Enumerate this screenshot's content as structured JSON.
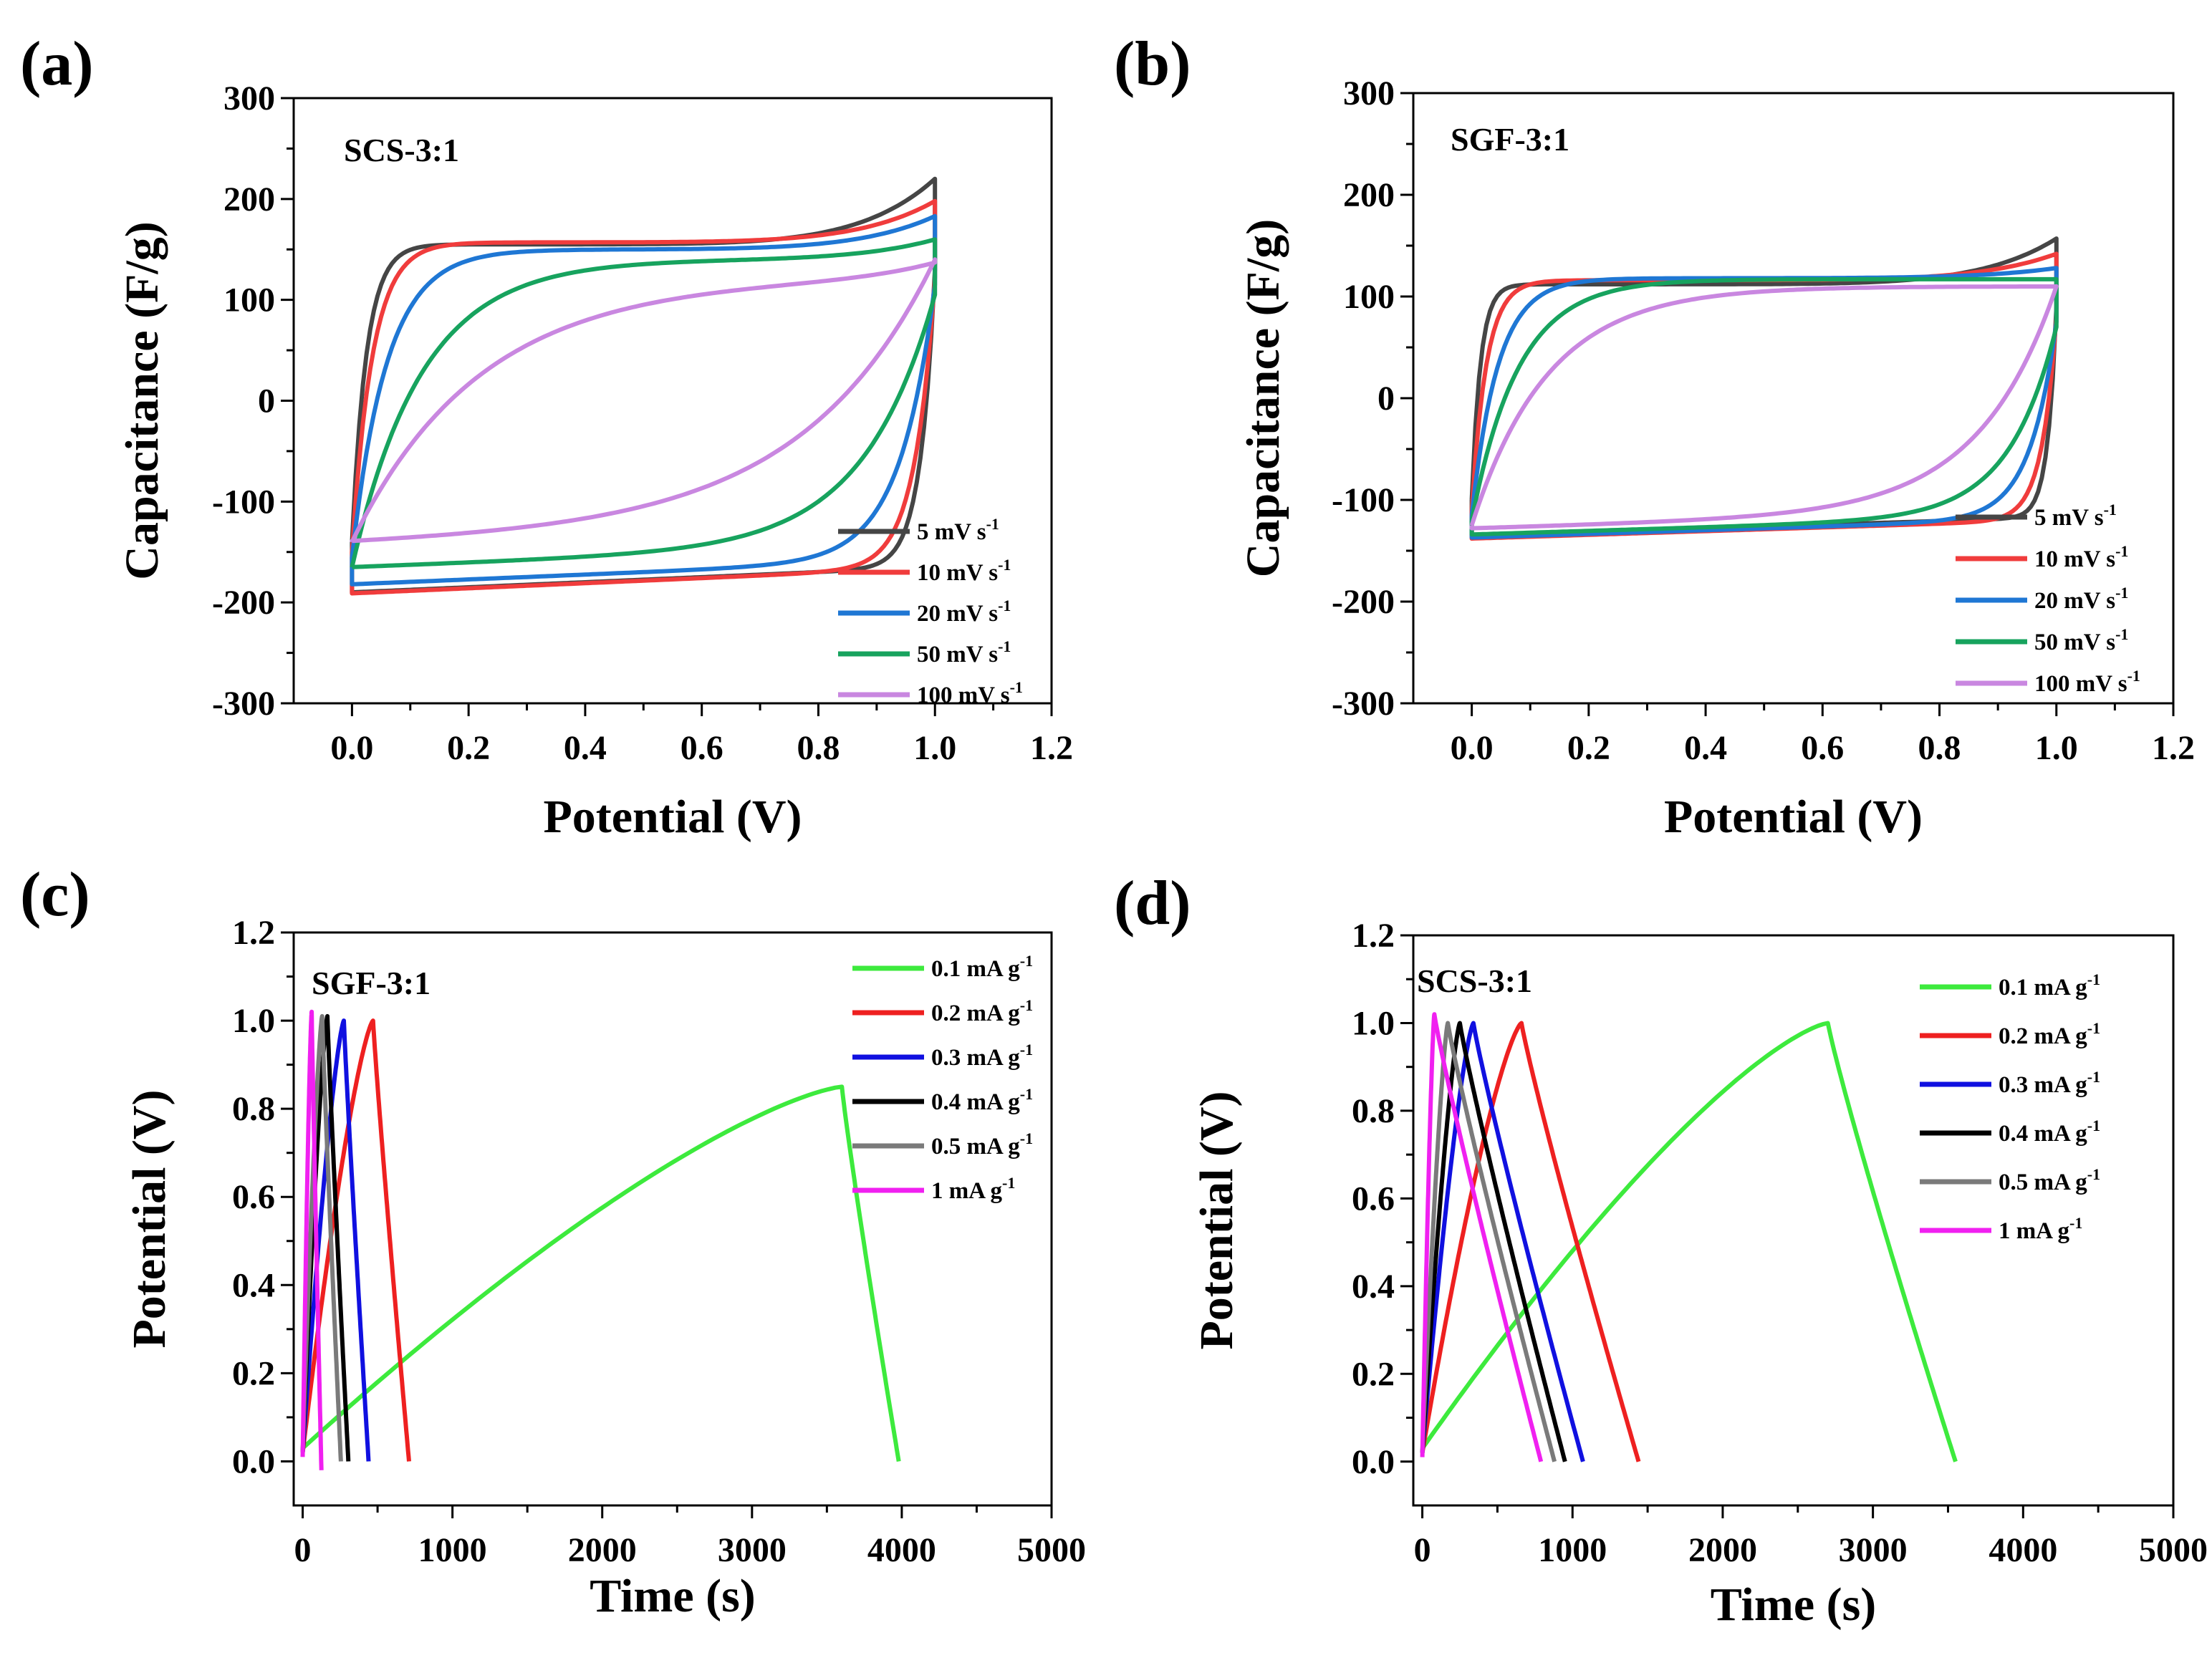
{
  "chart_data": [
    {
      "type": "line",
      "panel": "(a)",
      "inset_label": "SCS-3:1",
      "xlabel": "Potential (V)",
      "ylabel": "Capacitance (F/g)",
      "xlim": [
        -0.1,
        1.2
      ],
      "ylim": [
        -300,
        300
      ],
      "xticks": [
        "0.0",
        "0.2",
        "0.4",
        "0.6",
        "0.8",
        "1.0",
        "1.2"
      ],
      "yticks": [
        "300",
        "200",
        "100",
        "0",
        "-100",
        "-200",
        "-300"
      ],
      "legend_position": "bottom-right",
      "series": [
        {
          "name": "5 mV s",
          "sup": "-1",
          "color": "#454545",
          "upper_start": -140,
          "upper_left": 155,
          "upper_right": 220,
          "lower_right": 130,
          "lower_left": -190,
          "tau": 0.025,
          "v": 10
        },
        {
          "name": "10 mV s",
          "sup": "-1",
          "color": "#f03c3c",
          "upper_start": -150,
          "upper_left": 157,
          "upper_right": 198,
          "lower_right": 122,
          "lower_left": -191,
          "tau": 0.035,
          "v": 10
        },
        {
          "name": "20 mV s",
          "sup": "-1",
          "color": "#1f77d4",
          "upper_start": -155,
          "upper_left": 150,
          "upper_right": 183,
          "lower_right": 115,
          "lower_left": -182,
          "tau": 0.06,
          "v": 10
        },
        {
          "name": "50 mV s",
          "sup": "-1",
          "color": "#17a35e",
          "upper_start": -165,
          "upper_left": 140,
          "upper_right": 160,
          "lower_right": 105,
          "lower_left": -165,
          "tau": 0.12,
          "v": 10
        },
        {
          "name": "100 mV s",
          "sup": "-1",
          "color": "#c987e0",
          "upper_start": -140,
          "upper_left": 122,
          "upper_right": 140,
          "lower_right": 140,
          "lower_left": -142,
          "tau": 0.22,
          "v": 10
        }
      ]
    },
    {
      "type": "line",
      "panel": "(b)",
      "inset_label": "SGF-3:1",
      "xlabel": "Potential (V)",
      "ylabel": "Capacitance (F/g)",
      "xlim": [
        -0.1,
        1.2
      ],
      "ylim": [
        -300,
        300
      ],
      "xticks": [
        "0.0",
        "0.2",
        "0.4",
        "0.6",
        "0.8",
        "1.0",
        "1.2"
      ],
      "yticks": [
        "300",
        "200",
        "100",
        "0",
        "-100",
        "-200",
        "-300"
      ],
      "legend_position": "bottom-right",
      "series": [
        {
          "name": "5 mV s",
          "sup": "-1",
          "color": "#454545",
          "upper_start": -100,
          "upper_left": 112,
          "upper_right": 157,
          "lower_right": 90,
          "lower_left": -135,
          "tau": 0.015,
          "v": 10
        },
        {
          "name": "10 mV s",
          "sup": "-1",
          "color": "#f03c3c",
          "upper_start": -110,
          "upper_left": 116,
          "upper_right": 142,
          "lower_right": 80,
          "lower_left": -138,
          "tau": 0.025,
          "v": 10
        },
        {
          "name": "20 mV s",
          "sup": "-1",
          "color": "#1f77d4",
          "upper_start": -115,
          "upper_left": 118,
          "upper_right": 128,
          "lower_right": 75,
          "lower_left": -137,
          "tau": 0.045,
          "v": 10
        },
        {
          "name": "50 mV s",
          "sup": "-1",
          "color": "#17a35e",
          "upper_start": -120,
          "upper_left": 117,
          "upper_right": 117,
          "lower_right": 70,
          "lower_left": -134,
          "tau": 0.08,
          "v": 10
        },
        {
          "name": "100 mV s",
          "sup": "-1",
          "color": "#c987e0",
          "upper_start": -125,
          "upper_left": 110,
          "upper_right": 110,
          "lower_right": 110,
          "lower_left": -128,
          "tau": 0.13,
          "v": 10
        }
      ]
    },
    {
      "type": "line",
      "panel": "(c)",
      "inset_label": "SGF-3:1",
      "xlabel": "Time (s)",
      "ylabel": "Potential (V)",
      "xlim": [
        -60,
        5000
      ],
      "ylim": [
        -0.1,
        1.2
      ],
      "xticks": [
        "0",
        "1000",
        "2000",
        "3000",
        "4000",
        "5000"
      ],
      "yticks": [
        "1.2",
        "1.0",
        "0.8",
        "0.6",
        "0.4",
        "0.2",
        "0.0"
      ],
      "legend_position": "top-right",
      "series": [
        {
          "name": "0.1 mA g",
          "sup": "-1",
          "color": "#3dea3d",
          "t_peak": 3600,
          "v_peak": 0.85,
          "t_end": 3980,
          "v_start": 0.03,
          "v_end": 0.0
        },
        {
          "name": "0.2 mA g",
          "sup": "-1",
          "color": "#ee2020",
          "t_peak": 470,
          "v_peak": 1.0,
          "t_end": 710,
          "v_start": 0.02,
          "v_end": 0.0
        },
        {
          "name": "0.3 mA g",
          "sup": "-1",
          "color": "#1010e0",
          "t_peak": 275,
          "v_peak": 1.0,
          "t_end": 440,
          "v_start": 0.02,
          "v_end": 0.0
        },
        {
          "name": "0.4 mA g",
          "sup": "-1",
          "color": "#000000",
          "t_peak": 165,
          "v_peak": 1.01,
          "t_end": 305,
          "v_start": 0.02,
          "v_end": 0.0
        },
        {
          "name": "0.5 mA g",
          "sup": "-1",
          "color": "#7a7a7a",
          "t_peak": 130,
          "v_peak": 1.01,
          "t_end": 255,
          "v_start": 0.02,
          "v_end": 0.0
        },
        {
          "name": "1 mA g",
          "sup": "-1",
          "color": "#f020f0",
          "t_peak": 60,
          "v_peak": 1.02,
          "t_end": 125,
          "v_start": 0.01,
          "v_end": -0.02
        }
      ]
    },
    {
      "type": "line",
      "panel": "(d)",
      "inset_label": "SCS-3:1",
      "xlabel": "Time (s)",
      "ylabel": "Potential (V)",
      "xlim": [
        -60,
        5000
      ],
      "ylim": [
        -0.1,
        1.2
      ],
      "xticks": [
        "0",
        "1000",
        "2000",
        "3000",
        "4000",
        "5000"
      ],
      "yticks": [
        "1.2",
        "1.0",
        "0.8",
        "0.6",
        "0.4",
        "0.2",
        "0.0"
      ],
      "legend_position": "top-right",
      "series": [
        {
          "name": "0.1 mA g",
          "sup": "-1",
          "color": "#3dea3d",
          "t_peak": 2700,
          "v_peak": 1.0,
          "t_end": 3550,
          "v_start": 0.03,
          "v_end": 0.0
        },
        {
          "name": "0.2 mA g",
          "sup": "-1",
          "color": "#ee2020",
          "t_peak": 660,
          "v_peak": 1.0,
          "t_end": 1440,
          "v_start": 0.02,
          "v_end": 0.0
        },
        {
          "name": "0.3 mA g",
          "sup": "-1",
          "color": "#1010e0",
          "t_peak": 340,
          "v_peak": 1.0,
          "t_end": 1070,
          "v_start": 0.02,
          "v_end": 0.0
        },
        {
          "name": "0.4 mA g",
          "sup": "-1",
          "color": "#000000",
          "t_peak": 250,
          "v_peak": 1.0,
          "t_end": 950,
          "v_start": 0.02,
          "v_end": 0.0
        },
        {
          "name": "0.5 mA g",
          "sup": "-1",
          "color": "#7a7a7a",
          "t_peak": 170,
          "v_peak": 1.0,
          "t_end": 880,
          "v_start": 0.02,
          "v_end": 0.0
        },
        {
          "name": "1 mA g",
          "sup": "-1",
          "color": "#f020f0",
          "t_peak": 80,
          "v_peak": 1.02,
          "t_end": 790,
          "v_start": 0.01,
          "v_end": 0.0
        }
      ]
    }
  ]
}
